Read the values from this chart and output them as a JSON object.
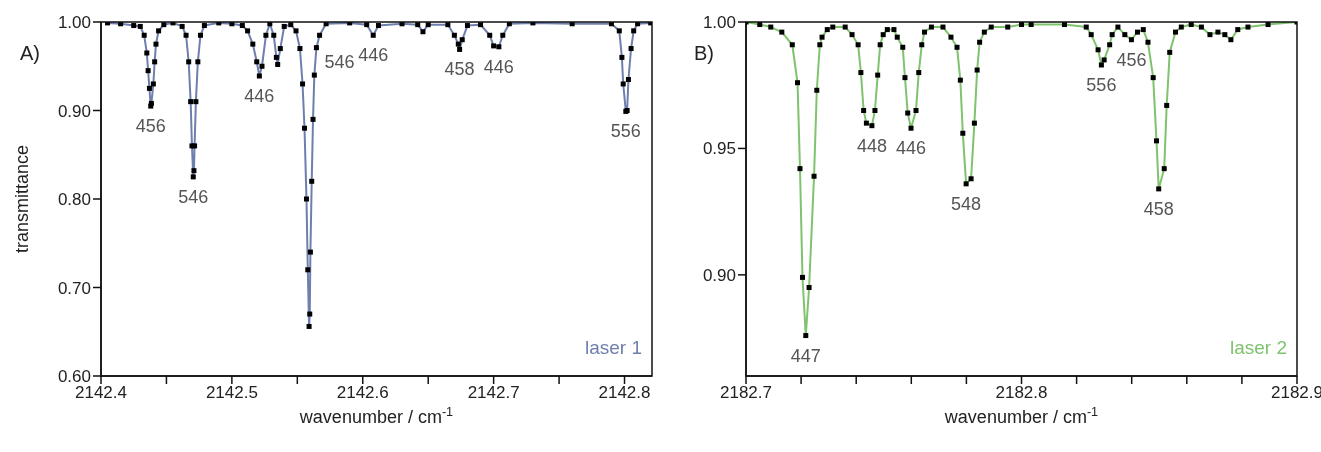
{
  "chart_data": [
    {
      "type": "line",
      "title": "A)",
      "xlabel": "wavenumber / cm$^{-1}$",
      "ylabel": "transmittance",
      "xlim": [
        2142.4,
        2142.821
      ],
      "ylim": [
        0.6,
        1.0
      ],
      "xticks": [
        2142.4,
        {
          "value": 2142.45,
          "label": null
        },
        2142.5,
        {
          "value": 2142.55,
          "label": null
        },
        2142.6,
        {
          "value": 2142.65,
          "label": null
        },
        2142.7,
        {
          "value": 2142.75,
          "label": null
        },
        2142.8
      ],
      "yticks": [
        {
          "value": 0.6,
          "label": "0.60"
        },
        {
          "value": 0.7,
          "label": "0.70"
        },
        {
          "value": 0.8,
          "label": "0.80"
        },
        {
          "value": 0.9,
          "label": "0.90"
        },
        {
          "value": 1.0,
          "label": "1.00"
        }
      ],
      "grid": false,
      "legend": false,
      "x": [
        2142.405,
        2142.415,
        2142.425,
        2142.43,
        2142.433,
        2142.435,
        2142.436,
        2142.437,
        2142.438,
        2142.4385,
        2142.44,
        2142.441,
        2142.442,
        2142.444,
        2142.448,
        2142.455,
        2142.462,
        2142.465,
        2142.467,
        2142.4685,
        2142.4695,
        2142.4705,
        2142.471,
        2142.4715,
        2142.4725,
        2142.474,
        2142.476,
        2142.479,
        2142.49,
        2142.5,
        2142.508,
        2142.512,
        2142.516,
        2142.519,
        2142.521,
        2142.523,
        2142.526,
        2142.529,
        2142.532,
        2142.534,
        2142.535,
        2142.537,
        2142.54,
        2142.545,
        2142.549,
        2142.552,
        2142.554,
        2142.5555,
        2142.557,
        2142.558,
        2142.559,
        2142.5595,
        2142.56,
        2142.561,
        2142.562,
        2142.563,
        2142.5646,
        2142.567,
        2142.572,
        2142.59,
        2142.603,
        2142.608,
        2142.612,
        2142.63,
        2142.642,
        2142.646,
        2142.65,
        2142.665,
        2142.67,
        2142.673,
        2142.674,
        2142.676,
        2142.68,
        2142.69,
        2142.697,
        2142.7,
        2142.704,
        2142.707,
        2142.712,
        2142.73,
        2142.76,
        2142.79,
        2142.796,
        2142.798,
        2142.799,
        2142.801,
        2142.802,
        2142.803,
        2142.805,
        2142.807,
        2142.81,
        2142.82
      ],
      "series": [
        {
          "type": "line",
          "color": "#6e7fae",
          "marker": "none",
          "values": [
            0.999,
            0.998,
            0.996,
            0.995,
            0.985,
            0.965,
            0.945,
            0.925,
            0.905,
            0.908,
            0.93,
            0.955,
            0.975,
            0.99,
            0.997,
            0.999,
            0.995,
            0.985,
            0.955,
            0.91,
            0.86,
            0.825,
            0.832,
            0.86,
            0.91,
            0.955,
            0.985,
            0.996,
            0.999,
            0.998,
            0.996,
            0.99,
            0.975,
            0.955,
            0.939,
            0.95,
            0.985,
            0.998,
            0.985,
            0.96,
            0.952,
            0.97,
            0.995,
            0.997,
            0.99,
            0.97,
            0.93,
            0.88,
            0.8,
            0.72,
            0.656,
            0.67,
            0.74,
            0.82,
            0.89,
            0.94,
            0.971,
            0.985,
            0.998,
            0.999,
            0.997,
            0.985,
            0.996,
            0.998,
            0.997,
            0.989,
            0.997,
            0.997,
            0.985,
            0.975,
            0.969,
            0.98,
            0.996,
            0.997,
            0.985,
            0.973,
            0.972,
            0.985,
            0.998,
            0.999,
            0.998,
            0.998,
            0.99,
            0.96,
            0.93,
            0.899,
            0.9,
            0.935,
            0.97,
            0.99,
            0.998,
            0.999
          ]
        },
        {
          "type": "scatter",
          "color": "#000000",
          "marker": "square",
          "values": [
            0.999,
            0.998,
            0.996,
            0.995,
            0.985,
            0.965,
            0.945,
            0.925,
            0.905,
            0.908,
            0.93,
            0.955,
            0.975,
            0.99,
            0.997,
            0.999,
            0.995,
            0.985,
            0.955,
            0.91,
            0.86,
            0.825,
            0.832,
            0.86,
            0.91,
            0.955,
            0.985,
            0.996,
            0.999,
            0.998,
            0.996,
            0.99,
            0.975,
            0.955,
            0.939,
            0.95,
            0.985,
            0.998,
            0.985,
            0.96,
            0.952,
            0.97,
            0.995,
            0.997,
            0.99,
            0.97,
            0.93,
            0.88,
            0.8,
            0.72,
            0.656,
            0.67,
            0.74,
            0.82,
            0.89,
            0.94,
            0.971,
            0.985,
            0.998,
            0.999,
            0.997,
            0.985,
            0.996,
            0.998,
            0.997,
            0.989,
            0.997,
            0.997,
            0.985,
            0.975,
            0.969,
            0.98,
            0.996,
            0.997,
            0.985,
            0.973,
            0.972,
            0.985,
            0.998,
            0.999,
            0.998,
            0.998,
            0.99,
            0.96,
            0.93,
            0.899,
            0.9,
            0.935,
            0.97,
            0.99,
            0.998,
            0.999
          ]
        }
      ],
      "annotations": [
        {
          "text": "456",
          "x": 2142.438,
          "y": 0.905
        },
        {
          "text": "546",
          "x": 2142.4705,
          "y": 0.825
        },
        {
          "text": "446",
          "x": 2142.521,
          "y": 0.939
        },
        {
          "text": "546",
          "x": 2142.5646,
          "y": 0.971
        },
        {
          "text": "446",
          "x": 2142.608,
          "y": 0.985
        },
        {
          "text": "458",
          "x": 2142.674,
          "y": 0.969
        },
        {
          "text": "446",
          "x": 2142.704,
          "y": 0.972
        },
        {
          "text": "556",
          "x": 2142.801,
          "y": 0.899
        },
        "laser 1"
      ]
    },
    {
      "type": "line",
      "title": "B)",
      "xlabel": "wavenumber / cm$^{-1}$",
      "xlim": [
        2182.7,
        2182.9
      ],
      "ylim": [
        0.86,
        1.0
      ],
      "xticks": [
        2182.7,
        {
          "value": 2182.72,
          "label": null
        },
        {
          "value": 2182.74,
          "label": null
        },
        {
          "value": 2182.76,
          "label": null
        },
        {
          "value": 2182.78,
          "label": null
        },
        2182.8,
        {
          "value": 2182.82,
          "label": null
        },
        {
          "value": 2182.84,
          "label": null
        },
        {
          "value": 2182.86,
          "label": null
        },
        {
          "value": 2182.88,
          "label": null
        },
        2182.9
      ],
      "yticks": [
        {
          "value": 0.9,
          "label": "0.90"
        },
        {
          "value": 0.95,
          "label": "0.95"
        },
        {
          "value": 1.0,
          "label": "1.00"
        }
      ],
      "grid": false,
      "legend": false,
      "x": [
        2182.7,
        2182.705,
        2182.709,
        2182.713,
        2182.7168,
        2182.7187,
        2182.7196,
        2182.7205,
        2182.7217,
        2182.7229,
        2182.7247,
        2182.7257,
        2182.7268,
        2182.7276,
        2182.7295,
        2182.7315,
        2182.736,
        2182.7385,
        2182.7407,
        2182.7417,
        2182.7427,
        2182.7437,
        2182.7457,
        2182.7468,
        2182.7478,
        2182.7487,
        2182.7498,
        2182.7513,
        2182.7537,
        2182.7549,
        2182.7569,
        2182.7577,
        2182.7587,
        2182.7599,
        2182.7617,
        2182.7627,
        2182.7638,
        2182.7648,
        2182.7673,
        2182.7715,
        2182.7744,
        2182.7766,
        2182.7778,
        2182.7787,
        2182.7799,
        2182.7817,
        2182.7829,
        2182.7839,
        2182.7848,
        2182.7865,
        2182.789,
        2182.795,
        2182.8,
        2182.8035,
        2182.8156,
        2182.8235,
        2182.8253,
        2182.8278,
        2182.829,
        2182.83,
        2182.832,
        2182.8329,
        2182.835,
        2182.8375,
        2182.8399,
        2182.8421,
        2182.8442,
        2182.8459,
        2182.8478,
        2182.849,
        2182.8498,
        2182.8518,
        2182.8527,
        2182.8538,
        2182.8559,
        2182.858,
        2182.8616,
        2182.8653,
        2182.8684,
        2182.8713,
        2182.8738,
        2182.876,
        2182.8785,
        2182.8822,
        2182.8895,
        2182.9
      ],
      "series": [
        {
          "type": "line",
          "color": "#7fc36e",
          "marker": "none",
          "values": [
            1.0,
            0.999,
            0.998,
            0.996,
            0.991,
            0.976,
            0.942,
            0.899,
            0.876,
            0.895,
            0.939,
            0.973,
            0.991,
            0.994,
            0.997,
            0.998,
            0.998,
            0.995,
            0.991,
            0.98,
            0.965,
            0.96,
            0.959,
            0.965,
            0.979,
            0.991,
            0.995,
            0.997,
            0.997,
            0.994,
            0.99,
            0.978,
            0.964,
            0.958,
            0.965,
            0.98,
            0.991,
            0.996,
            0.998,
            0.998,
            0.994,
            0.99,
            0.977,
            0.956,
            0.936,
            0.938,
            0.96,
            0.981,
            0.992,
            0.996,
            0.998,
            0.998,
            0.999,
            0.999,
            0.999,
            0.998,
            0.995,
            0.989,
            0.983,
            0.985,
            0.991,
            0.995,
            0.998,
            0.995,
            0.993,
            0.996,
            0.997,
            0.992,
            0.978,
            0.953,
            0.934,
            0.942,
            0.967,
            0.988,
            0.996,
            0.998,
            0.999,
            0.998,
            0.995,
            0.996,
            0.995,
            0.993,
            0.997,
            0.998,
            0.999,
            1.0
          ]
        },
        {
          "type": "scatter",
          "color": "#000000",
          "marker": "square",
          "values": [
            1.0,
            0.999,
            0.998,
            0.996,
            0.991,
            0.976,
            0.942,
            0.899,
            0.876,
            0.895,
            0.939,
            0.973,
            0.991,
            0.994,
            0.997,
            0.998,
            0.998,
            0.995,
            0.991,
            0.98,
            0.965,
            0.96,
            0.959,
            0.965,
            0.979,
            0.991,
            0.995,
            0.997,
            0.997,
            0.994,
            0.99,
            0.978,
            0.964,
            0.958,
            0.965,
            0.98,
            0.991,
            0.996,
            0.998,
            0.998,
            0.994,
            0.99,
            0.977,
            0.956,
            0.936,
            0.938,
            0.96,
            0.981,
            0.992,
            0.996,
            0.998,
            0.998,
            0.999,
            0.999,
            0.999,
            0.998,
            0.995,
            0.989,
            0.983,
            0.985,
            0.991,
            0.995,
            0.998,
            0.995,
            0.993,
            0.996,
            0.997,
            0.992,
            0.978,
            0.953,
            0.934,
            0.942,
            0.967,
            0.988,
            0.996,
            0.998,
            0.999,
            0.998,
            0.995,
            0.996,
            0.995,
            0.993,
            0.997,
            0.998,
            0.999,
            1.0
          ]
        }
      ],
      "annotations": [
        {
          "text": "447",
          "x": 2182.7217,
          "y": 0.876
        },
        {
          "text": "448",
          "x": 2182.7457,
          "y": 0.959
        },
        {
          "text": "446",
          "x": 2182.7599,
          "y": 0.958
        },
        {
          "text": "548",
          "x": 2182.7799,
          "y": 0.936
        },
        {
          "text": "556",
          "x": 2182.829,
          "y": 0.983
        },
        {
          "text": "456",
          "x": 2182.8399,
          "y": 0.993
        },
        {
          "text": "458",
          "x": 2182.8498,
          "y": 0.934
        },
        "laser 2"
      ]
    }
  ]
}
